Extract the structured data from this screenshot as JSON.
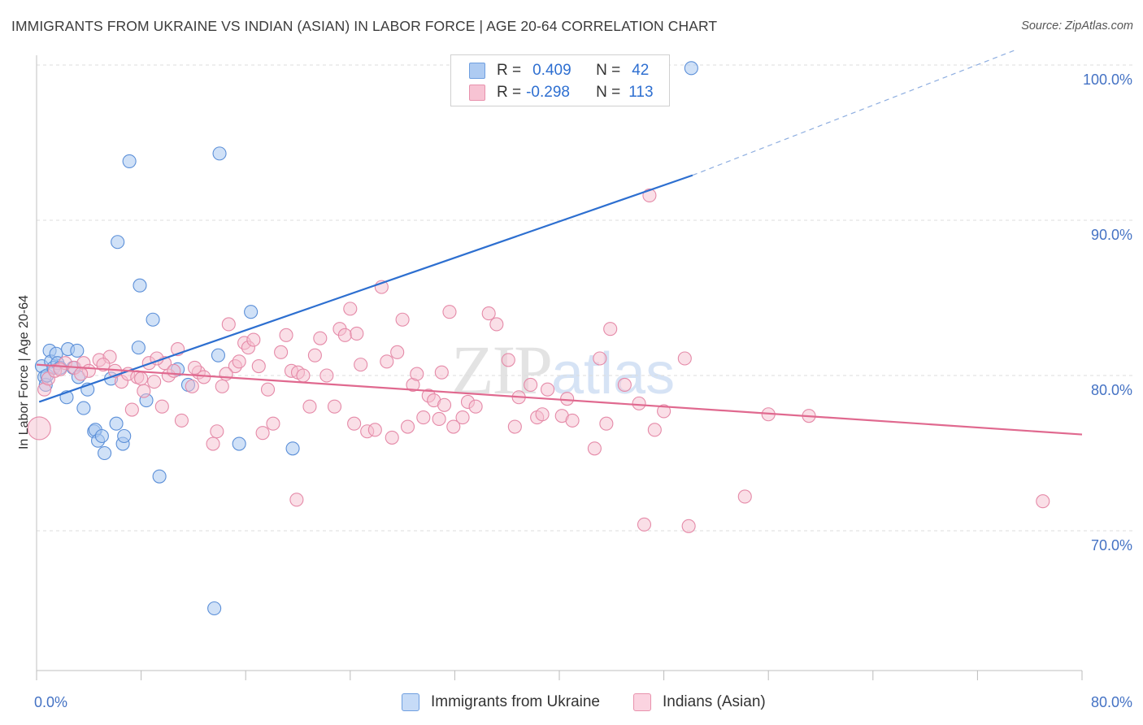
{
  "title": "IMMIGRANTS FROM UKRAINE VS INDIAN (ASIAN) IN LABOR FORCE | AGE 20-64 CORRELATION CHART",
  "source": "Source: ZipAtlas.com",
  "watermark": {
    "zip": "ZIP",
    "atlas": "atlas"
  },
  "legend": {
    "rows": [
      {
        "r_label": "R =",
        "r_value": "0.409",
        "n_label": "N =",
        "n_value": "42",
        "color": "#aecbf2",
        "border": "#6f9fe0"
      },
      {
        "r_label": "R =",
        "r_value": "-0.298",
        "n_label": "N =",
        "n_value": "113",
        "color": "#f7c3d3",
        "border": "#e892ad"
      }
    ]
  },
  "bottom_legend": [
    {
      "label": "Immigrants from Ukraine",
      "color": "#c6dbf7",
      "border": "#6f9fe0"
    },
    {
      "label": "Indians (Asian)",
      "color": "#fbd3e0",
      "border": "#e892ad"
    }
  ],
  "chart_data": {
    "type": "scatter",
    "xlabel": "",
    "ylabel": "In Labor Force | Age 20-64",
    "xlim": [
      0,
      80
    ],
    "ylim": [
      60.5,
      101.5
    ],
    "x_tick_labels": [
      {
        "value": 0,
        "label": "0.0%"
      },
      {
        "value": 80,
        "label": "80.0%"
      }
    ],
    "y_tick_labels": [
      {
        "value": 70,
        "label": "70.0%"
      },
      {
        "value": 80,
        "label": "80.0%"
      },
      {
        "value": 90,
        "label": "90.0%"
      },
      {
        "value": 100,
        "label": "100.0%"
      }
    ],
    "y_gridlines": [
      70,
      80,
      90,
      100
    ],
    "colors": {
      "ukraine_fill": "#a9c8f0",
      "ukraine_stroke": "#5b8fd8",
      "indian_fill": "#f6bfd0",
      "indian_stroke": "#e58aa8",
      "ukraine_line": "#2d6fd0",
      "indian_line": "#e0698f"
    },
    "series": [
      {
        "name": "Immigrants from Ukraine",
        "trend": {
          "x0": 0.2,
          "y0": 78.3,
          "x1": 50.2,
          "y1": 92.9,
          "dash_to_x": 75.0,
          "dash_to_y": 101.0
        },
        "points": [
          [
            0.4,
            80.6
          ],
          [
            0.6,
            79.9
          ],
          [
            0.7,
            79.4
          ],
          [
            0.8,
            80.0
          ],
          [
            1.0,
            81.6
          ],
          [
            1.1,
            80.9
          ],
          [
            1.3,
            80.5
          ],
          [
            1.5,
            81.4
          ],
          [
            1.6,
            80.8
          ],
          [
            1.8,
            80.5
          ],
          [
            2.3,
            78.6
          ],
          [
            2.4,
            81.7
          ],
          [
            2.8,
            80.5
          ],
          [
            3.1,
            81.6
          ],
          [
            3.2,
            79.9
          ],
          [
            3.6,
            77.9
          ],
          [
            3.9,
            79.1
          ],
          [
            4.4,
            76.4
          ],
          [
            4.5,
            76.5
          ],
          [
            4.7,
            75.8
          ],
          [
            5.0,
            76.1
          ],
          [
            5.2,
            75.0
          ],
          [
            5.7,
            79.8
          ],
          [
            6.1,
            76.9
          ],
          [
            6.2,
            88.6
          ],
          [
            6.6,
            75.6
          ],
          [
            6.7,
            76.1
          ],
          [
            7.1,
            93.8
          ],
          [
            7.8,
            81.8
          ],
          [
            7.9,
            85.8
          ],
          [
            8.4,
            78.4
          ],
          [
            8.9,
            83.6
          ],
          [
            9.4,
            73.5
          ],
          [
            10.8,
            80.4
          ],
          [
            11.6,
            79.4
          ],
          [
            13.6,
            65.0
          ],
          [
            13.9,
            81.3
          ],
          [
            14.0,
            94.3
          ],
          [
            15.5,
            75.6
          ],
          [
            16.4,
            84.1
          ],
          [
            19.6,
            75.3
          ],
          [
            50.1,
            99.8
          ]
        ]
      },
      {
        "name": "Indians (Asian)",
        "trend": {
          "x0": 0.0,
          "y0": 80.7,
          "x1": 80.0,
          "y1": 76.2
        },
        "points": [
          [
            0.2,
            76.6
          ],
          [
            0.6,
            79.1
          ],
          [
            0.9,
            79.8
          ],
          [
            1.4,
            80.3
          ],
          [
            2.2,
            80.8
          ],
          [
            2.9,
            80.5
          ],
          [
            3.6,
            80.8
          ],
          [
            4.0,
            80.3
          ],
          [
            4.8,
            81.0
          ],
          [
            5.6,
            81.2
          ],
          [
            6.0,
            80.3
          ],
          [
            6.5,
            79.6
          ],
          [
            7.0,
            80.1
          ],
          [
            7.3,
            77.8
          ],
          [
            7.7,
            79.9
          ],
          [
            8.2,
            79.0
          ],
          [
            8.6,
            80.8
          ],
          [
            9.0,
            79.6
          ],
          [
            9.6,
            78.0
          ],
          [
            9.8,
            80.8
          ],
          [
            10.1,
            80.0
          ],
          [
            10.5,
            80.3
          ],
          [
            10.8,
            81.7
          ],
          [
            11.1,
            77.1
          ],
          [
            11.9,
            79.3
          ],
          [
            12.4,
            80.2
          ],
          [
            12.8,
            79.9
          ],
          [
            13.5,
            75.6
          ],
          [
            13.8,
            76.4
          ],
          [
            14.2,
            79.3
          ],
          [
            14.7,
            83.3
          ],
          [
            15.2,
            80.6
          ],
          [
            15.5,
            80.9
          ],
          [
            15.9,
            82.1
          ],
          [
            16.2,
            81.8
          ],
          [
            16.6,
            82.3
          ],
          [
            17.0,
            80.6
          ],
          [
            17.3,
            76.3
          ],
          [
            17.7,
            79.1
          ],
          [
            18.1,
            76.9
          ],
          [
            18.7,
            81.5
          ],
          [
            19.1,
            82.6
          ],
          [
            19.5,
            80.3
          ],
          [
            20.0,
            80.2
          ],
          [
            20.4,
            80.0
          ],
          [
            20.9,
            78.0
          ],
          [
            21.3,
            81.3
          ],
          [
            21.7,
            82.4
          ],
          [
            22.2,
            80.0
          ],
          [
            22.8,
            78.0
          ],
          [
            23.2,
            83.0
          ],
          [
            23.6,
            82.6
          ],
          [
            24.0,
            84.3
          ],
          [
            24.5,
            82.7
          ],
          [
            24.8,
            80.7
          ],
          [
            25.3,
            76.4
          ],
          [
            25.9,
            76.5
          ],
          [
            26.4,
            85.7
          ],
          [
            26.8,
            80.9
          ],
          [
            27.2,
            76.0
          ],
          [
            27.6,
            81.5
          ],
          [
            28.0,
            83.6
          ],
          [
            28.4,
            76.7
          ],
          [
            28.8,
            79.4
          ],
          [
            29.1,
            80.1
          ],
          [
            29.6,
            77.3
          ],
          [
            30.0,
            78.7
          ],
          [
            30.4,
            78.4
          ],
          [
            30.8,
            77.2
          ],
          [
            31.2,
            78.1
          ],
          [
            31.6,
            84.1
          ],
          [
            31.9,
            76.7
          ],
          [
            32.6,
            77.3
          ],
          [
            33.0,
            78.3
          ],
          [
            33.6,
            78.0
          ],
          [
            34.6,
            84.0
          ],
          [
            35.2,
            83.3
          ],
          [
            36.1,
            81.0
          ],
          [
            36.6,
            76.7
          ],
          [
            36.9,
            78.6
          ],
          [
            37.8,
            79.4
          ],
          [
            38.3,
            77.3
          ],
          [
            38.7,
            77.5
          ],
          [
            39.1,
            79.1
          ],
          [
            40.2,
            77.4
          ],
          [
            40.6,
            78.5
          ],
          [
            41.0,
            77.1
          ],
          [
            42.7,
            75.3
          ],
          [
            43.1,
            81.1
          ],
          [
            43.6,
            76.9
          ],
          [
            43.9,
            83.0
          ],
          [
            45.0,
            79.4
          ],
          [
            46.1,
            78.2
          ],
          [
            46.5,
            70.4
          ],
          [
            46.9,
            91.6
          ],
          [
            47.3,
            76.5
          ],
          [
            48.0,
            77.7
          ],
          [
            49.6,
            81.1
          ],
          [
            49.9,
            70.3
          ],
          [
            19.9,
            72.0
          ],
          [
            54.2,
            72.2
          ],
          [
            56.0,
            77.5
          ],
          [
            59.1,
            77.4
          ],
          [
            77.0,
            71.9
          ],
          [
            1.8,
            80.4
          ],
          [
            5.1,
            80.7
          ],
          [
            9.2,
            81.1
          ],
          [
            12.1,
            80.5
          ],
          [
            14.5,
            80.1
          ],
          [
            3.4,
            80.1
          ],
          [
            8.0,
            79.8
          ],
          [
            24.3,
            76.9
          ],
          [
            31.0,
            80.2
          ]
        ]
      }
    ]
  }
}
